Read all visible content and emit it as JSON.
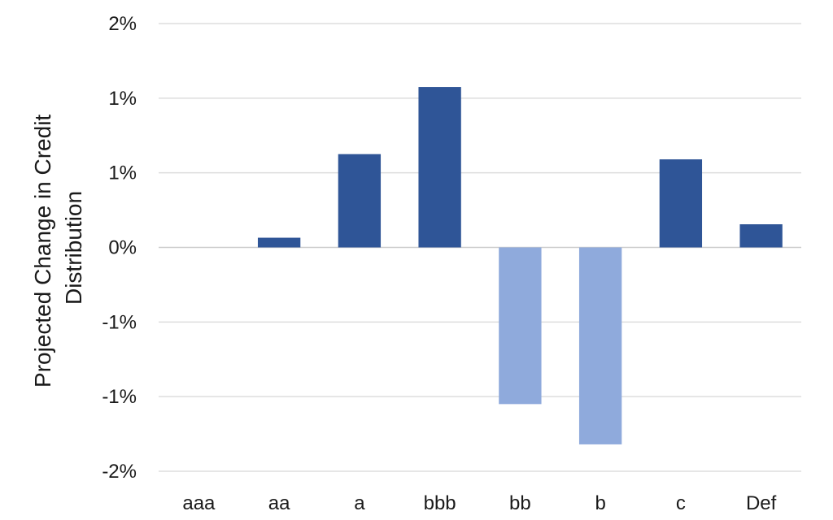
{
  "chart_data": {
    "type": "bar",
    "ylabel_lines": [
      "Projected Change in Credit",
      "Distribution"
    ],
    "categories": [
      "aaa",
      "aa",
      "a",
      "bbb",
      "bb",
      "b",
      "c",
      "Def"
    ],
    "values": [
      0.0,
      0.065,
      0.625,
      1.075,
      -1.05,
      -1.32,
      0.59,
      0.155
    ],
    "ylim": [
      -1.5,
      1.5
    ],
    "yticks": [
      {
        "value": 1.5,
        "label": "2%"
      },
      {
        "value": 1.0,
        "label": "1%"
      },
      {
        "value": 0.5,
        "label": "1%"
      },
      {
        "value": 0.0,
        "label": "0%"
      },
      {
        "value": -0.5,
        "label": "-1%"
      },
      {
        "value": -1.0,
        "label": "-1%"
      },
      {
        "value": -1.5,
        "label": "-2%"
      }
    ],
    "grid": true,
    "legend": "none",
    "colors": {
      "positive": "#2f5597",
      "negative": "#8faadc",
      "grid": "#dddddd"
    }
  }
}
